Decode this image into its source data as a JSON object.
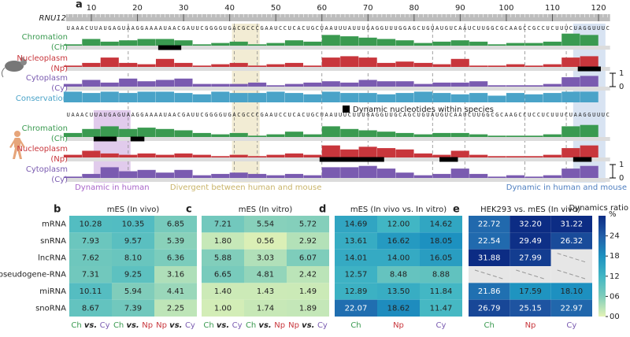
{
  "group_colors": {
    "Ch": "#3a9a50",
    "Np": "#c8363c",
    "Cy": "#7a5bb0"
  },
  "base_colors": {
    "A": "#2e8b3e",
    "C": "#1f5fbf",
    "G": "#e08a00",
    "U": "#d6262a"
  },
  "chart_data": [
    {
      "type": "track",
      "panel": "a",
      "gene": "RNU12",
      "xlim": [
        4.5,
        122.5
      ],
      "xticks": [
        10,
        20,
        30,
        40,
        50,
        60,
        70,
        80,
        90,
        100,
        110,
        120
      ],
      "ylim": [
        0,
        1
      ],
      "yticks": [
        0,
        1
      ],
      "mouse_sequence": "UAAACUUAUGAGUAAGGAAAAUAACGAUUCGGGGUGACGCCCGAAUCCUCACUGCUAAUUUAUUUGAGGUUUGGAGCUGUAUGUCAAUCUUGGCGCAAGCCGCCUCUUUCUAGGUUUC",
      "human_sequence": "UAAACUUAUGAGUAAGGAAAAUAACGAUUCGGGGUGACGCCCGAAUCCUCACUGCUAAUUUCUUUGAGGUUGCAGCUGUAUGUCAAUCUUGGCGCAAGCCUCCUCUUUCUAAGGUUUC",
      "x": [
        6,
        10,
        14,
        18,
        22,
        26,
        30,
        34,
        38,
        42,
        46,
        50,
        54,
        58,
        62,
        66,
        70,
        74,
        78,
        82,
        86,
        90,
        94,
        98,
        102,
        106,
        110,
        114,
        118
      ],
      "tracks": [
        {
          "name": "Chromation",
          "abbr": "(Ch)",
          "color": "#3a9a50",
          "values": [
            0.1,
            0.5,
            0.3,
            0.4,
            0.5,
            0.5,
            0.4,
            0.1,
            0.2,
            0.3,
            0.1,
            0.2,
            0.4,
            0.3,
            0.8,
            0.7,
            0.6,
            0.5,
            0.4,
            0.2,
            0.3,
            0.4,
            0.3,
            0.1,
            0.2,
            0.2,
            0.3,
            0.9,
            0.8
          ],
          "dynamic": [
            [
              25,
              29
            ]
          ]
        },
        {
          "name": "Nucleoplasm",
          "abbr": "(Np)",
          "color": "#c8363c",
          "values": [
            0.1,
            0.3,
            0.7,
            0.3,
            0.2,
            0.6,
            0.3,
            0.1,
            0.2,
            0.3,
            0.1,
            0.2,
            0.3,
            0.1,
            0.7,
            0.8,
            0.7,
            0.3,
            0.4,
            0.3,
            0.2,
            0.6,
            0.1,
            0.1,
            0.2,
            0.1,
            0.2,
            0.7,
            0.8
          ],
          "dynamic": [
            [
              116,
              120
            ]
          ]
        },
        {
          "name": "Cytoplasm",
          "abbr": "(Cy)",
          "color": "#7a5bb0",
          "values": [
            0.2,
            0.5,
            0.3,
            0.6,
            0.4,
            0.5,
            0.6,
            0.2,
            0.2,
            0.2,
            0.3,
            0.1,
            0.2,
            0.3,
            0.4,
            0.3,
            0.5,
            0.4,
            0.4,
            0.2,
            0.3,
            0.3,
            0.4,
            0.1,
            0.1,
            0.1,
            0.2,
            0.7,
            0.8
          ],
          "dynamic": []
        },
        {
          "name": "Conservation",
          "color": "#4aa3c8",
          "values": [
            0.8,
            0.7,
            0.8,
            0.7,
            0.8,
            0.8,
            0.7,
            0.6,
            0.8,
            0.7,
            0.7,
            0.8,
            0.7,
            0.6,
            0.8,
            0.7,
            0.7,
            0.6,
            0.7,
            0.8,
            0.7,
            0.6,
            0.7,
            0.5,
            0.7,
            0.6,
            0.7,
            0.8,
            0.8
          ],
          "dynamic": []
        },
        {
          "name": "Chromation",
          "abbr": "(Ch)",
          "color": "#3a9a50",
          "values": [
            0.3,
            0.6,
            0.8,
            0.6,
            0.7,
            0.6,
            0.5,
            0.3,
            0.2,
            0.3,
            0.1,
            0.2,
            0.4,
            0.2,
            0.8,
            0.6,
            0.5,
            0.4,
            0.3,
            0.2,
            0.3,
            0.3,
            0.2,
            0.1,
            0.1,
            0.1,
            0.2,
            0.8,
            0.9
          ],
          "dynamic": [
            [
              11,
              15
            ],
            [
              19,
              21
            ]
          ]
        },
        {
          "name": "Nucleoplasm",
          "abbr": "(Np)",
          "color": "#c8363c",
          "values": [
            0.2,
            0.5,
            0.3,
            0.2,
            0.3,
            0.2,
            0.3,
            0.2,
            0.1,
            0.2,
            0.1,
            0.2,
            0.3,
            0.2,
            0.9,
            0.6,
            0.8,
            0.7,
            0.6,
            0.3,
            0.2,
            0.5,
            0.2,
            0.1,
            0.1,
            0.1,
            0.2,
            0.7,
            0.9
          ],
          "dynamic": [
            [
              60,
              73
            ],
            [
              86,
              89
            ],
            [
              115,
              118
            ]
          ]
        },
        {
          "name": "Cytoplasm",
          "abbr": "(Cy)",
          "color": "#7a5bb0",
          "values": [
            0.1,
            0.3,
            0.8,
            0.5,
            0.6,
            0.4,
            0.6,
            0.2,
            0.3,
            0.4,
            0.3,
            0.2,
            0.3,
            0.2,
            0.8,
            0.8,
            0.9,
            0.7,
            0.4,
            0.2,
            0.3,
            0.7,
            0.3,
            0.1,
            0.2,
            0.1,
            0.2,
            0.7,
            0.9
          ],
          "dynamic": []
        }
      ],
      "legend": "Dynamic nucleotides within species",
      "regions": [
        {
          "label": "Dynamic in human",
          "range": [
            11,
            18
          ],
          "color": "#c9a0dc",
          "span": "human"
        },
        {
          "label": "Divergent between human and mouse",
          "range": [
            41,
            46
          ],
          "color": "#e8dcb0",
          "span": "both"
        },
        {
          "label": "Dynamic in human and mouse",
          "range": [
            115,
            121
          ],
          "color": "#b8cce8",
          "span": "both"
        }
      ]
    },
    {
      "type": "heatmap",
      "panel": "b",
      "title": "mES (In vivo)",
      "vs": "vs.",
      "rows": [
        "mRNA",
        "snRNA",
        "lncRNA",
        "pseudogene-RNA",
        "miRNA",
        "snoRNA"
      ],
      "columns": [
        [
          "Ch",
          "Cy"
        ],
        [
          "Ch",
          "Np"
        ],
        [
          "Np",
          "Cy"
        ]
      ],
      "values": [
        [
          10.28,
          10.35,
          6.85
        ],
        [
          7.93,
          9.57,
          5.39
        ],
        [
          7.62,
          8.1,
          6.36
        ],
        [
          7.31,
          9.25,
          3.16
        ],
        [
          10.11,
          5.94,
          4.41
        ],
        [
          8.67,
          7.39,
          2.25
        ]
      ],
      "value_labels": [
        [
          "10.28",
          "10.35",
          "6.85"
        ],
        [
          "7.93",
          "9.57",
          "5.39"
        ],
        [
          "7.62",
          "8.10",
          "6.36"
        ],
        [
          "7.31",
          "9.25",
          "3.16"
        ],
        [
          "10.11",
          "5.94",
          "4.41"
        ],
        [
          "8.67",
          "7.39",
          "2.25"
        ]
      ]
    },
    {
      "type": "heatmap",
      "panel": "c",
      "title": "mES (In vitro)",
      "vs": "vs.",
      "columns": [
        [
          "Ch",
          "Cy"
        ],
        [
          "Ch",
          "Np"
        ],
        [
          "Np",
          "Cy"
        ]
      ],
      "values": [
        [
          7.21,
          5.54,
          5.72
        ],
        [
          1.8,
          0.56,
          2.92
        ],
        [
          5.88,
          3.03,
          6.07
        ],
        [
          6.65,
          4.81,
          2.42
        ],
        [
          1.4,
          1.43,
          1.49
        ],
        [
          1.0,
          1.74,
          1.89
        ]
      ],
      "value_labels": [
        [
          "7.21",
          "5.54",
          "5.72"
        ],
        [
          "1.80",
          "0.56",
          "2.92"
        ],
        [
          "5.88",
          "3.03",
          "6.07"
        ],
        [
          "6.65",
          "4.81",
          "2.42"
        ],
        [
          "1.40",
          "1.43",
          "1.49"
        ],
        [
          "1.00",
          "1.74",
          "1.89"
        ]
      ]
    },
    {
      "type": "heatmap",
      "panel": "d",
      "title": "mES (In vivo vs. In vitro)",
      "columns": [
        "Ch",
        "Np",
        "Cy"
      ],
      "values": [
        [
          14.69,
          12.0,
          14.62
        ],
        [
          13.61,
          16.62,
          18.05
        ],
        [
          14.01,
          14.0,
          16.05
        ],
        [
          12.57,
          8.48,
          8.88
        ],
        [
          12.89,
          13.5,
          11.84
        ],
        [
          22.07,
          18.62,
          11.47
        ]
      ],
      "value_labels": [
        [
          "14.69",
          "12.00",
          "14.62"
        ],
        [
          "13.61",
          "16.62",
          "18.05"
        ],
        [
          "14.01",
          "14.00",
          "16.05"
        ],
        [
          "12.57",
          "8.48",
          "8.88"
        ],
        [
          "12.89",
          "13.50",
          "11.84"
        ],
        [
          "22.07",
          "18.62",
          "11.47"
        ]
      ]
    },
    {
      "type": "heatmap",
      "panel": "e",
      "title": "HEK293 vs. mES (In vivo)",
      "columns": [
        "Ch",
        "Np",
        "Cy"
      ],
      "values": [
        [
          22.72,
          32.2,
          31.22
        ],
        [
          22.54,
          29.49,
          26.32
        ],
        [
          31.88,
          27.99,
          null
        ],
        [
          null,
          null,
          null
        ],
        [
          21.86,
          17.59,
          18.1
        ],
        [
          26.79,
          25.15,
          22.97
        ]
      ],
      "value_labels": [
        [
          "22.72",
          "32.20",
          "31.22"
        ],
        [
          "22.54",
          "29.49",
          "26.32"
        ],
        [
          "31.88",
          "27.99",
          null
        ],
        [
          null,
          null,
          null
        ],
        [
          "21.86",
          "17.59",
          "18.10"
        ],
        [
          "26.79",
          "25.15",
          "22.97"
        ]
      ],
      "colorbar": {
        "title": "Dynamics ratio",
        "unit": "%",
        "lim": [
          0,
          30
        ],
        "ticks": [
          {
            "value": 0,
            "label": "00"
          },
          {
            "value": 6,
            "label": "06"
          },
          12,
          18,
          24
        ],
        "colors": [
          "#e4f3b6",
          "#7fcdbb",
          "#41b6c4",
          "#1d91c0",
          "#225ea8",
          "#0c2c84"
        ]
      }
    }
  ]
}
